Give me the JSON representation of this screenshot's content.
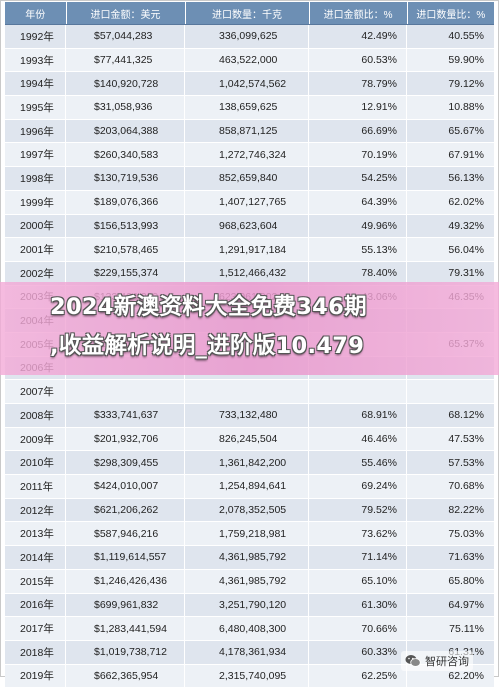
{
  "table": {
    "headers": [
      "年份",
      "进口金额：美元",
      "进口数量：千克",
      "进口金额比：%",
      "进口数量比：%"
    ],
    "rows": [
      [
        "1992年",
        "$57,044,283",
        "336,099,625",
        "42.49%",
        "40.55%"
      ],
      [
        "1993年",
        "$77,441,325",
        "463,522,000",
        "60.53%",
        "59.90%"
      ],
      [
        "1994年",
        "$140,920,728",
        "1,042,574,562",
        "78.79%",
        "79.12%"
      ],
      [
        "1995年",
        "$31,058,936",
        "138,659,625",
        "12.91%",
        "10.88%"
      ],
      [
        "1996年",
        "$203,064,388",
        "858,871,125",
        "66.69%",
        "65.67%"
      ],
      [
        "1997年",
        "$260,340,583",
        "1,272,746,324",
        "70.19%",
        "67.91%"
      ],
      [
        "1998年",
        "$130,719,536",
        "852,659,840",
        "54.25%",
        "56.13%"
      ],
      [
        "1999年",
        "$189,076,366",
        "1,407,127,765",
        "64.39%",
        "62.02%"
      ],
      [
        "2000年",
        "$156,513,993",
        "968,623,604",
        "49.96%",
        "49.32%"
      ],
      [
        "2001年",
        "$210,578,465",
        "1,291,917,184",
        "55.13%",
        "56.04%"
      ],
      [
        "2002年",
        "$229,155,374",
        "1,512,466,432",
        "78.40%",
        "79.31%"
      ],
      [
        "2003年",
        "$133,424,309",
        "623,961,902",
        "43.06%",
        "46.35%"
      ],
      [
        "2004年",
        "",
        "",
        "",
        ""
      ],
      [
        "2005年",
        "$226,338,417",
        "",
        "",
        "65.37%"
      ],
      [
        "2006年",
        "",
        "",
        "",
        ""
      ],
      [
        "2007年",
        "",
        "",
        "",
        ""
      ],
      [
        "2008年",
        "$333,741,637",
        "733,132,480",
        "68.91%",
        "68.12%"
      ],
      [
        "2009年",
        "$201,932,706",
        "826,245,504",
        "46.46%",
        "47.53%"
      ],
      [
        "2010年",
        "$298,309,455",
        "1,361,842,200",
        "55.46%",
        "57.53%"
      ],
      [
        "2011年",
        "$424,010,007",
        "1,254,894,641",
        "69.24%",
        "70.68%"
      ],
      [
        "2012年",
        "$621,206,262",
        "2,078,352,505",
        "79.52%",
        "82.22%"
      ],
      [
        "2013年",
        "$587,946,216",
        "1,759,218,981",
        "73.62%",
        "75.03%"
      ],
      [
        "2014年",
        "$1,119,614,557",
        "4,361,985,792",
        "71.14%",
        "71.63%"
      ],
      [
        "2015年",
        "$1,246,426,436",
        "4,361,985,792",
        "65.10%",
        "65.80%"
      ],
      [
        "2016年",
        "$699,961,832",
        "3,251,790,120",
        "61.30%",
        "64.97%"
      ],
      [
        "2017年",
        "$1,283,441,594",
        "6,480,408,300",
        "70.66%",
        "75.11%"
      ],
      [
        "2018年",
        "$1,019,738,712",
        "4,178,361,934",
        "60.33%",
        "61.31%"
      ],
      [
        "2019年",
        "$662,365,954",
        "2,315,740,095",
        "62.25%",
        "62.20%"
      ]
    ]
  },
  "banner": {
    "line1": "2024新澳资料大全免费346期",
    "line2": ",收益解析说明_进阶版10.479"
  },
  "watermark": {
    "icon": "wechat-icon",
    "text": "智研咨询"
  },
  "colors": {
    "header_bg": "#6d8fb4",
    "row_odd": "#dfe5ee",
    "row_even": "#edf1f6",
    "banner": "#eb9fd0"
  }
}
